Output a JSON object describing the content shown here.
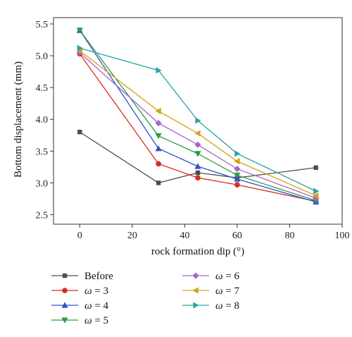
{
  "chart_data": {
    "type": "line",
    "xlabel": "rock formation dip (°)",
    "ylabel": "Bottom displacement (mm)",
    "xlim": [
      -10,
      100
    ],
    "ylim": [
      2.35,
      5.6
    ],
    "xticks": [
      0,
      20,
      40,
      60,
      80,
      100
    ],
    "yticks": [
      2.5,
      3.0,
      3.5,
      4.0,
      4.5,
      5.0,
      5.5
    ],
    "xtick_labels": [
      "0",
      "20",
      "40",
      "60",
      "80",
      "100"
    ],
    "ytick_labels": [
      "2.5",
      "3.0",
      "3.5",
      "4.0",
      "4.5",
      "5.0",
      "5.5"
    ],
    "grid": false,
    "legend_position": "bottom",
    "x": [
      0,
      30,
      45,
      60,
      90
    ],
    "series": [
      {
        "name": "Before",
        "legend": {
          "prefix": "Before",
          "value": ""
        },
        "color": "#4d4d4d",
        "marker": "square",
        "values": [
          3.8,
          3.0,
          3.16,
          3.08,
          3.24
        ]
      },
      {
        "name": "ω = 3",
        "legend": {
          "prefix": "ω",
          "value": " = 3"
        },
        "color": "#d62c22",
        "marker": "circle",
        "values": [
          5.03,
          3.3,
          3.08,
          2.97,
          2.71
        ]
      },
      {
        "name": "ω = 4",
        "legend": {
          "prefix": "ω",
          "value": " = 4"
        },
        "color": "#2e54c6",
        "marker": "triangle-up",
        "values": [
          5.4,
          3.54,
          3.26,
          3.06,
          2.7
        ]
      },
      {
        "name": "ω = 5",
        "legend": {
          "prefix": "ω",
          "value": " = 5"
        },
        "color": "#2c9b46",
        "marker": "triangle-down",
        "values": [
          5.4,
          3.74,
          3.46,
          3.12,
          2.72
        ]
      },
      {
        "name": "ω = 6",
        "legend": {
          "prefix": "ω",
          "value": " = 6"
        },
        "color": "#a565c9",
        "marker": "diamond",
        "values": [
          5.05,
          3.94,
          3.6,
          3.22,
          2.76
        ]
      },
      {
        "name": "ω = 7",
        "legend": {
          "prefix": "ω",
          "value": " = 7"
        },
        "color": "#d5a018",
        "marker": "triangle-left",
        "values": [
          5.08,
          4.13,
          3.78,
          3.34,
          2.8
        ]
      },
      {
        "name": "ω = 8",
        "legend": {
          "prefix": "ω",
          "value": " = 8"
        },
        "color": "#2aa4a8",
        "marker": "triangle-right",
        "values": [
          5.12,
          4.77,
          3.98,
          3.46,
          2.87
        ]
      }
    ]
  }
}
